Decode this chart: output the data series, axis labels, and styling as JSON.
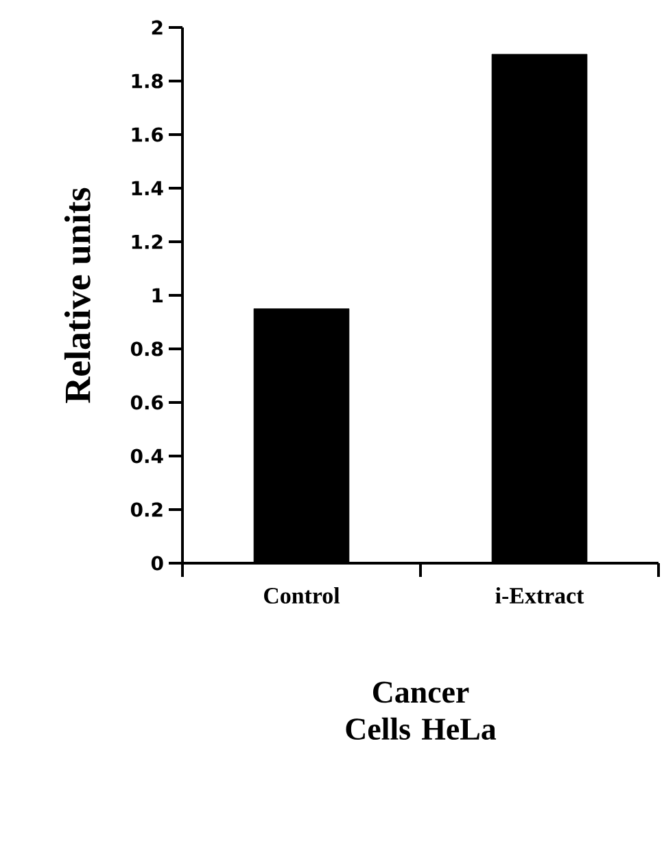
{
  "chart_data": {
    "type": "bar",
    "categories": [
      "Control",
      "i-Extract"
    ],
    "values": [
      0.95,
      1.9
    ],
    "color": "#000000",
    "xlabel": "Cancer Cells HeLa",
    "ylabel": "Relative units",
    "ylim": [
      0,
      2
    ],
    "yticks": [
      0,
      0.2,
      0.4,
      0.6,
      0.8,
      1,
      1.2,
      1.4,
      1.6,
      1.8,
      2
    ],
    "grid": false
  }
}
